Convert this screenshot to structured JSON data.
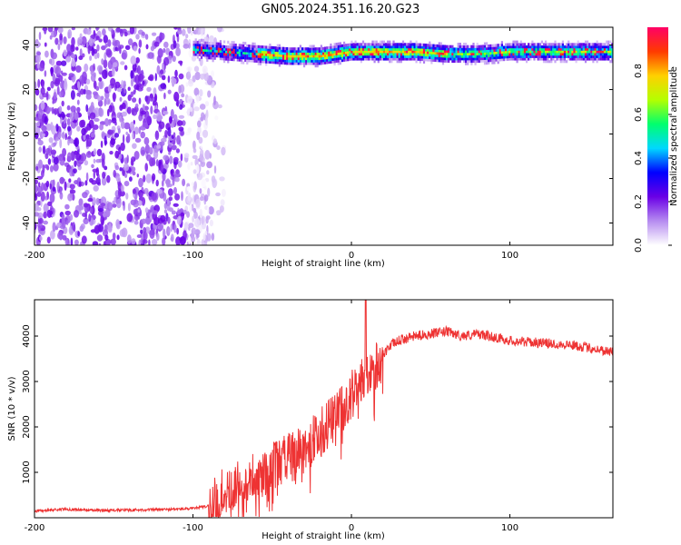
{
  "chart_data": [
    {
      "type": "heatmap",
      "title": "GN05.2024.351.16.20.G23",
      "xlabel": "Height of straight line (km)",
      "ylabel": "Frequency (Hz)",
      "xlim": [
        -200,
        165
      ],
      "ylim": [
        -50,
        48
      ],
      "xticks": [
        -200,
        -100,
        0,
        100
      ],
      "yticks": [
        -40,
        -20,
        0,
        20,
        40
      ],
      "colorbar": {
        "label": "Normalized spectral amplitude",
        "range": [
          0,
          1
        ],
        "ticks": [
          "0.0",
          "0.2",
          "0.4",
          "0.6",
          "0.8"
        ],
        "colormap": [
          "#ffffff",
          "#b68cf0",
          "#6a00e6",
          "#0000ff",
          "#00d8ff",
          "#00ff6e",
          "#b4ff00",
          "#ffd000",
          "#ff3a00",
          "#ff0066"
        ]
      },
      "features": {
        "noise_region_x": [
          -200,
          -80
        ],
        "dominant_line": {
          "x": [
            -100,
            -80,
            -60,
            -40,
            -20,
            0,
            20,
            40,
            60,
            80,
            100,
            120,
            140,
            165
          ],
          "frequency_hz": [
            38,
            37,
            36,
            35,
            35,
            37,
            37,
            37,
            36,
            36,
            37,
            37,
            37,
            37
          ]
        }
      }
    },
    {
      "type": "line",
      "xlabel": "Height of straight line (km)",
      "ylabel": "SNR (10 * v/v)",
      "xlim": [
        -200,
        165
      ],
      "ylim": [
        0,
        4800
      ],
      "xticks": [
        -200,
        -100,
        0,
        100
      ],
      "yticks": [
        1000,
        2000,
        3000,
        4000
      ],
      "color": "#ee3333",
      "series": [
        {
          "x": [
            -200,
            -180,
            -160,
            -140,
            -120,
            -100,
            -90,
            -85,
            -80,
            -75,
            -70,
            -60,
            -50,
            -40,
            -30,
            -20,
            -10,
            0,
            5,
            10,
            15,
            20,
            25,
            30,
            40,
            50,
            60,
            70,
            80,
            100,
            120,
            140,
            165
          ],
          "y": [
            150,
            190,
            160,
            170,
            180,
            200,
            260,
            380,
            620,
            700,
            760,
            920,
            1120,
            1300,
            1500,
            1850,
            2250,
            2700,
            3050,
            3150,
            3300,
            3600,
            3800,
            3900,
            4000,
            4050,
            4100,
            4000,
            4050,
            3900,
            3850,
            3800,
            3650
          ]
        }
      ]
    }
  ]
}
